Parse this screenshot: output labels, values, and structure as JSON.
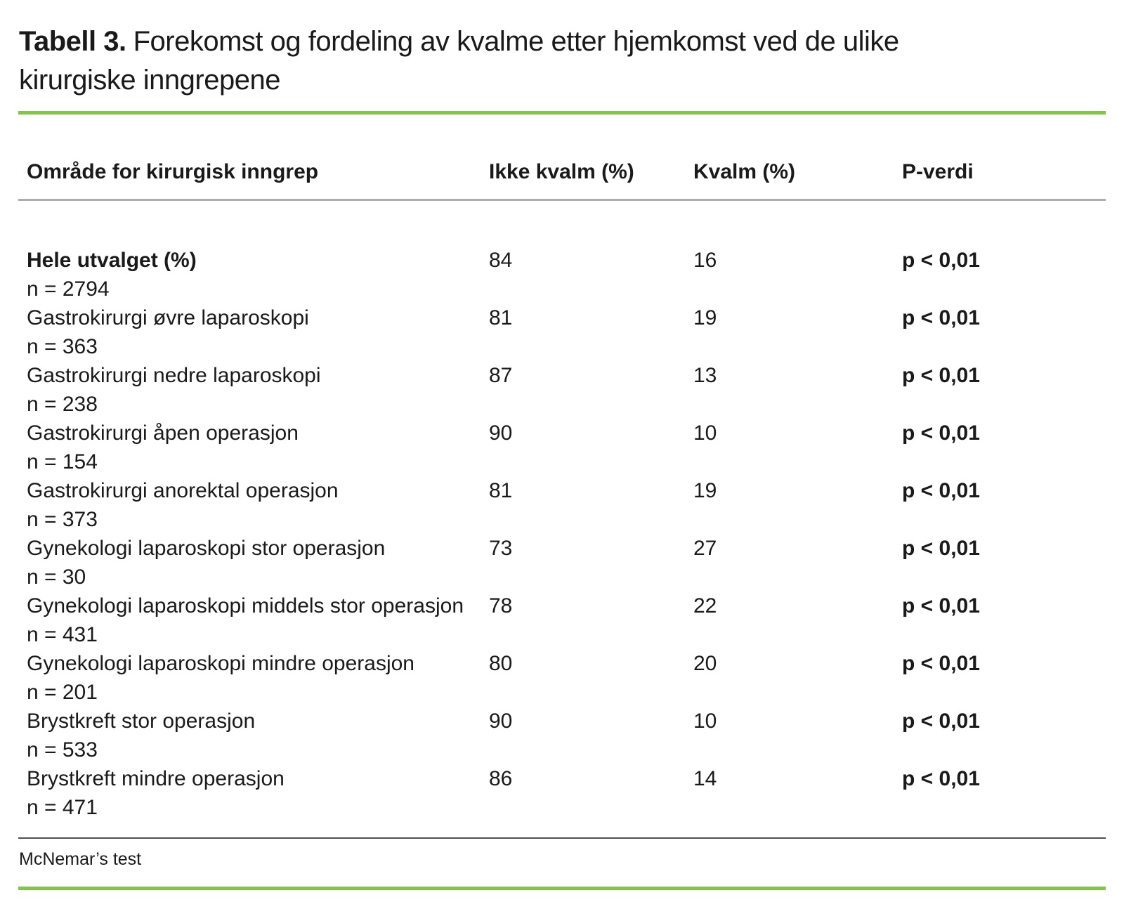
{
  "title": {
    "prefix": "Tabell 3.",
    "line1": "Forekomst og fordeling av kvalme etter hjemkomst ved de ulike",
    "line2": "kirurgiske inngrepene"
  },
  "colors": {
    "accent_green": "#82c548",
    "header_rule_gray": "#aeaeae",
    "footer_rule_dark": "#4f4f4f",
    "text": "#1a1a1a"
  },
  "table": {
    "columns": [
      "Område for kirurgisk inngrep",
      "Ikke kvalm (%)",
      "Kvalm (%)",
      "P-verdi"
    ],
    "rows": [
      {
        "label": "Hele utvalget (%)",
        "n": "n = 2794",
        "ikke_kvalm": "84",
        "kvalm": "16",
        "p": "p < 0,01"
      },
      {
        "label": "Gastrokirurgi øvre laparoskopi",
        "n": "n = 363",
        "ikke_kvalm": "81",
        "kvalm": "19",
        "p": "p < 0,01"
      },
      {
        "label": "Gastrokirurgi nedre laparoskopi",
        "n": "n = 238",
        "ikke_kvalm": "87",
        "kvalm": "13",
        "p": "p < 0,01"
      },
      {
        "label": "Gastrokirurgi åpen operasjon",
        "n": "n = 154",
        "ikke_kvalm": "90",
        "kvalm": "10",
        "p": "p < 0,01"
      },
      {
        "label": "Gastrokirurgi anorektal operasjon",
        "n": "n = 373",
        "ikke_kvalm": "81",
        "kvalm": "19",
        "p": "p < 0,01"
      },
      {
        "label": "Gynekologi laparoskopi stor operasjon",
        "n": "n = 30",
        "ikke_kvalm": "73",
        "kvalm": "27",
        "p": "p < 0,01"
      },
      {
        "label": "Gynekologi laparoskopi middels stor operasjon",
        "n": "n = 431",
        "ikke_kvalm": "78",
        "kvalm": "22",
        "p": "p < 0,01"
      },
      {
        "label": "Gynekologi laparoskopi mindre operasjon",
        "n": "n = 201",
        "ikke_kvalm": "80",
        "kvalm": "20",
        "p": "p < 0,01"
      },
      {
        "label": "Brystkreft stor operasjon",
        "n": "n = 533",
        "ikke_kvalm": "90",
        "kvalm": "10",
        "p": "p < 0,01"
      },
      {
        "label": "Brystkreft mindre operasjon",
        "n": "n = 471",
        "ikke_kvalm": "86",
        "kvalm": "14",
        "p": "p < 0,01"
      }
    ]
  },
  "footnote": "McNemar’s test"
}
